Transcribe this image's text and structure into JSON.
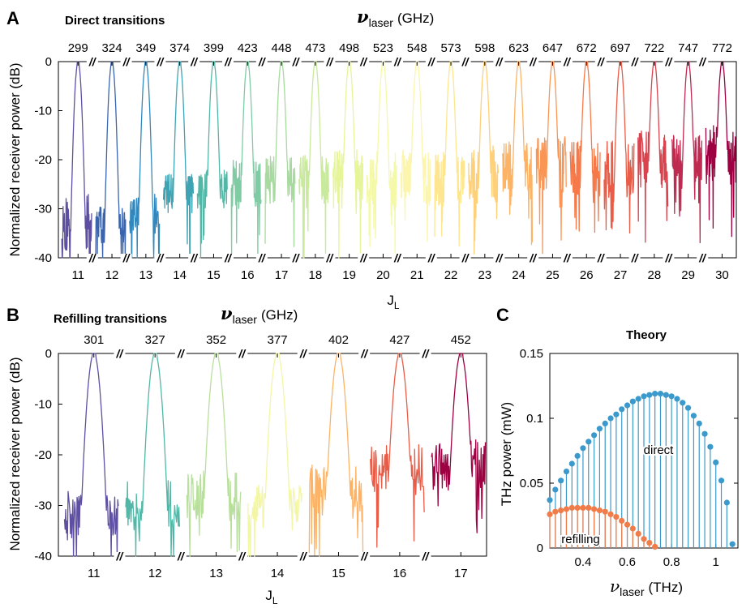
{
  "panels": {
    "A": {
      "letter": "A",
      "title": "Direct transitions",
      "top_label": {
        "nu": "ν",
        "sub": "laser",
        "unit": "(GHz)"
      },
      "xlabel": {
        "main": "J",
        "sub": "L"
      },
      "ylabel": "Normalized receiver power (dB)",
      "break_mark": "//"
    },
    "B": {
      "letter": "B",
      "title": "Refilling transitions",
      "top_label": {
        "nu": "ν",
        "sub": "laser",
        "unit": "(GHz)"
      },
      "xlabel": {
        "main": "J",
        "sub": "L"
      },
      "ylabel": "Normalized receiver power (dB)",
      "break_mark": "//"
    },
    "C": {
      "letter": "C",
      "title": "Theory",
      "xlabel": {
        "main": "ν",
        "sub": "laser",
        "unit": "(THz)"
      },
      "ylabel": "THz power (mW)",
      "label_direct": "direct",
      "label_refilling": "refilling"
    }
  },
  "chart_data": [
    {
      "id": "A",
      "type": "line",
      "title": "Direct transitions",
      "xlabel": "J_L",
      "ylabel": "Normalized receiver power (dB)",
      "ylim": [
        -40,
        0
      ],
      "yticks": [
        0,
        -10,
        -20,
        -30,
        -40
      ],
      "categories": [
        "11",
        "12",
        "13",
        "14",
        "15",
        "16",
        "17",
        "18",
        "19",
        "20",
        "21",
        "22",
        "23",
        "24",
        "25",
        "26",
        "27",
        "28",
        "29",
        "30"
      ],
      "nu_laser_GHz": [
        "299",
        "324",
        "349",
        "374",
        "399",
        "423",
        "448",
        "473",
        "498",
        "523",
        "548",
        "573",
        "598",
        "623",
        "647",
        "672",
        "697",
        "722",
        "747",
        "772"
      ],
      "series_colors": [
        "#5e4fa2",
        "#3a64ad",
        "#3288bd",
        "#3fa3b4",
        "#52b7a7",
        "#7fcba4",
        "#a7da9e",
        "#c9e99d",
        "#e6f598",
        "#f4f9a8",
        "#fbf5ad",
        "#fee690",
        "#fed07a",
        "#fdb366",
        "#fa9655",
        "#f67a49",
        "#e95c47",
        "#d8434e",
        "#bf2a50",
        "#9e0142"
      ],
      "series_floor_db": [
        -33,
        -33,
        -31,
        -27,
        -26,
        -25,
        -24,
        -24,
        -24,
        -24,
        -24,
        -24,
        -23,
        -22,
        -21,
        -22,
        -22,
        -20,
        -20,
        -19
      ],
      "series_spread_db": [
        6,
        4,
        4,
        4,
        4,
        5,
        5,
        6,
        6,
        6,
        6,
        6,
        6,
        6,
        6,
        6,
        6,
        6,
        5,
        6
      ]
    },
    {
      "id": "B",
      "type": "line",
      "title": "Refilling transitions",
      "xlabel": "J_L",
      "ylabel": "Normalized receiver power (dB)",
      "ylim": [
        -40,
        0
      ],
      "yticks": [
        0,
        -10,
        -20,
        -30,
        -40
      ],
      "categories": [
        "11",
        "12",
        "13",
        "14",
        "15",
        "16",
        "17"
      ],
      "nu_laser_GHz": [
        "301",
        "327",
        "352",
        "377",
        "402",
        "427",
        "452"
      ],
      "series_colors": [
        "#5e4fa2",
        "#52b7a7",
        "#b9df9d",
        "#f3f6a5",
        "#fdb366",
        "#e95c47",
        "#9e0142"
      ],
      "series_floor_db": [
        -32,
        -30,
        -28,
        -30,
        -27,
        -22,
        -22
      ],
      "series_spread_db": [
        5,
        5,
        5,
        5,
        5,
        5,
        5
      ]
    },
    {
      "id": "C",
      "type": "scatter",
      "title": "Theory",
      "xlabel": "ν_laser (THz)",
      "ylabel": "THz power (mW)",
      "xlim": [
        0.25,
        1.1
      ],
      "ylim": [
        0,
        0.15
      ],
      "xticks": [
        0.4,
        0.6,
        0.8,
        1
      ],
      "yticks": [
        0,
        0.05,
        0.1,
        0.15
      ],
      "series": [
        {
          "name": "direct",
          "color": "#3b9acb",
          "x": [
            0.25,
            0.275,
            0.3,
            0.325,
            0.35,
            0.375,
            0.4,
            0.425,
            0.45,
            0.475,
            0.5,
            0.525,
            0.55,
            0.575,
            0.6,
            0.625,
            0.65,
            0.675,
            0.7,
            0.725,
            0.75,
            0.775,
            0.8,
            0.825,
            0.85,
            0.875,
            0.9,
            0.925,
            0.95,
            0.975,
            1.0,
            1.025,
            1.05,
            1.075
          ],
          "y": [
            0.037,
            0.045,
            0.052,
            0.059,
            0.065,
            0.071,
            0.077,
            0.082,
            0.087,
            0.092,
            0.096,
            0.1,
            0.103,
            0.107,
            0.11,
            0.113,
            0.115,
            0.117,
            0.118,
            0.119,
            0.119,
            0.118,
            0.117,
            0.115,
            0.112,
            0.108,
            0.102,
            0.096,
            0.088,
            0.078,
            0.066,
            0.052,
            0.035,
            0.003
          ]
        },
        {
          "name": "refilling",
          "color": "#f07c4a",
          "x": [
            0.25,
            0.275,
            0.3,
            0.325,
            0.35,
            0.375,
            0.4,
            0.425,
            0.45,
            0.475,
            0.5,
            0.525,
            0.55,
            0.575,
            0.6,
            0.625,
            0.65,
            0.675,
            0.7,
            0.725
          ],
          "y": [
            0.026,
            0.028,
            0.029,
            0.03,
            0.031,
            0.031,
            0.031,
            0.031,
            0.03,
            0.029,
            0.028,
            0.026,
            0.024,
            0.021,
            0.018,
            0.015,
            0.011,
            0.007,
            0.004,
            0.001
          ]
        }
      ]
    }
  ]
}
